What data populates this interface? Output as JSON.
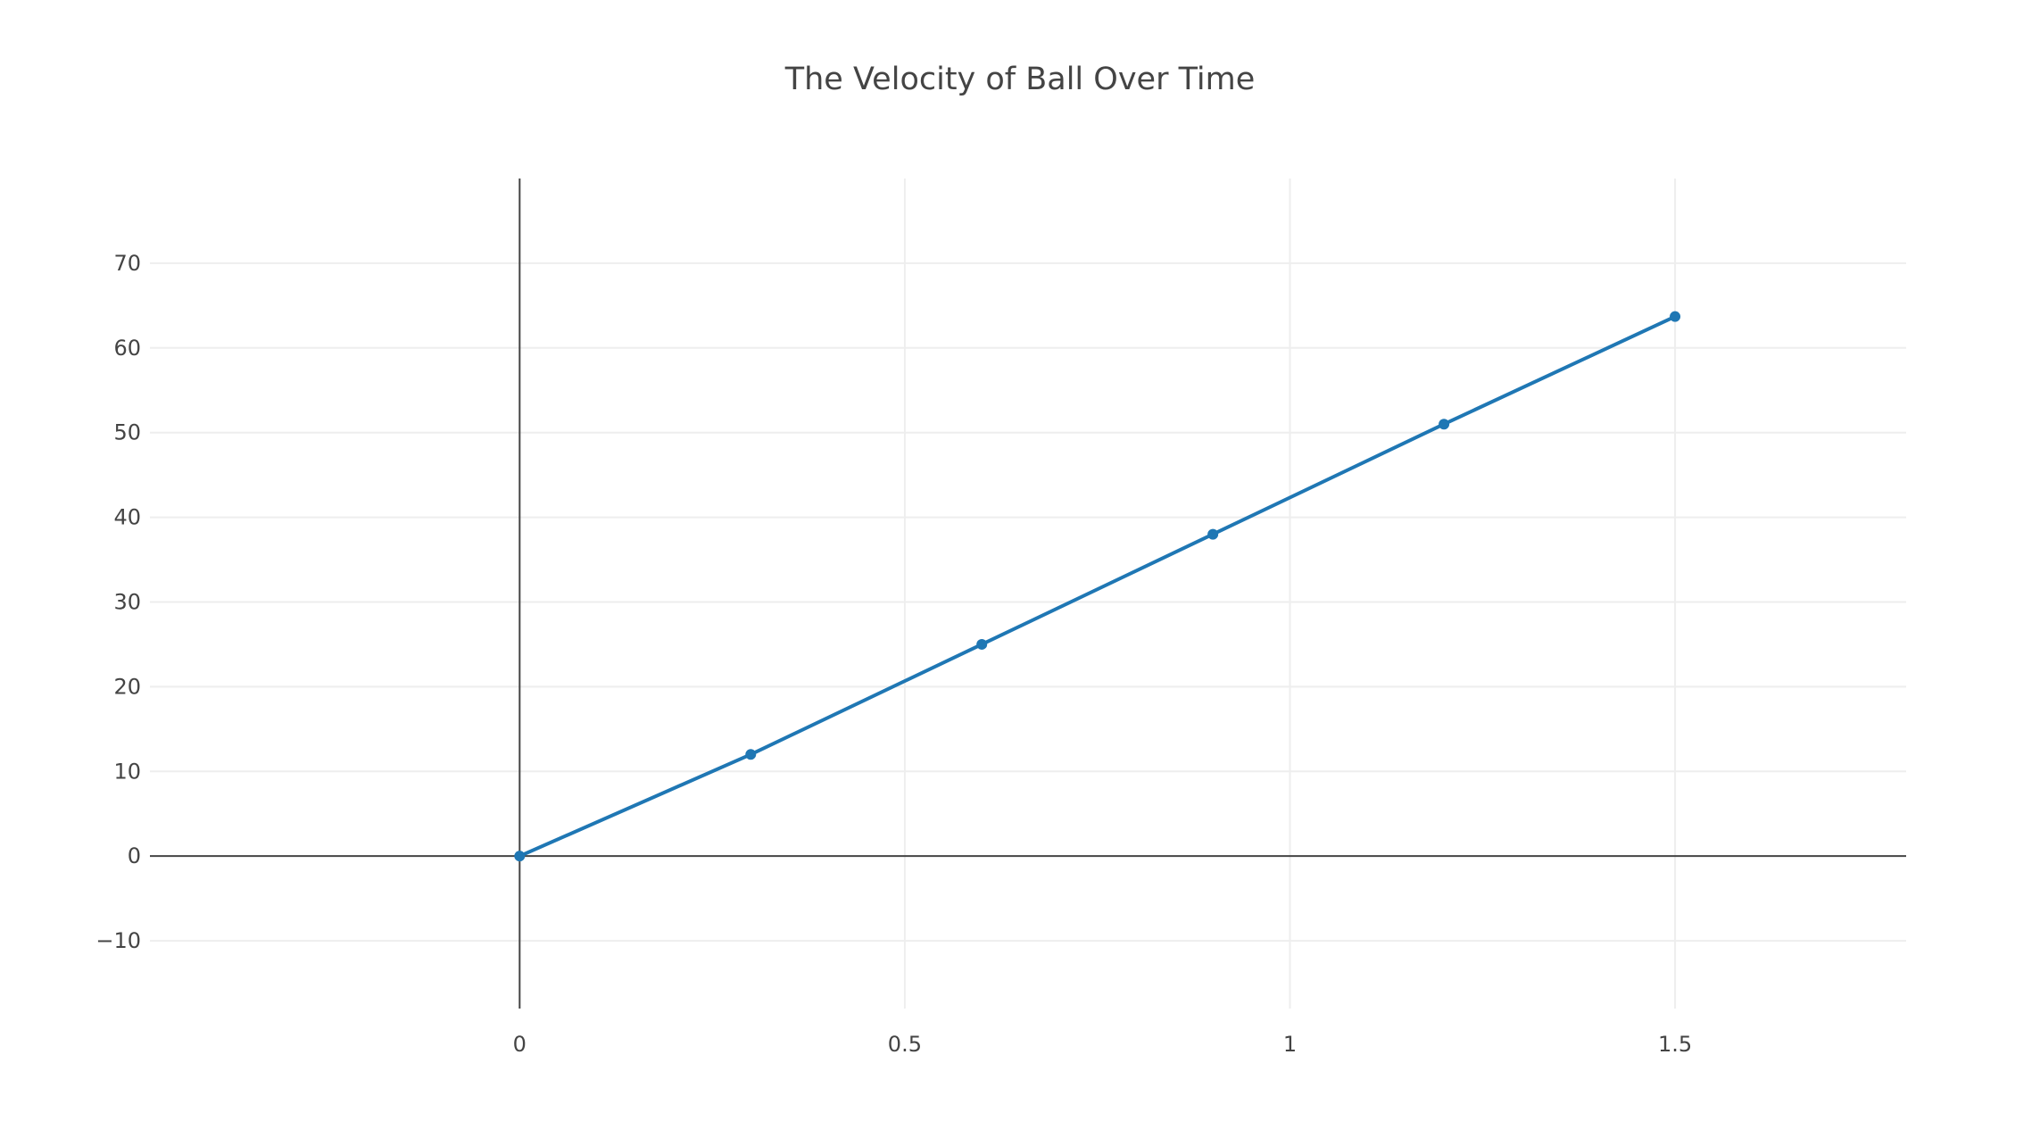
{
  "chart_data": {
    "type": "line",
    "title": "The Velocity of Ball Over Time",
    "xlabel": "",
    "ylabel": "",
    "x": [
      0,
      0.3,
      0.6,
      0.9,
      1.2,
      1.5
    ],
    "series": [
      {
        "values": [
          0,
          12,
          25,
          38,
          51,
          63.7
        ],
        "color": "#1f77b4",
        "mode": "lines+markers"
      }
    ],
    "xlim": [
      -0.48,
      1.8
    ],
    "ylim": [
      -18,
      80
    ],
    "xticks": [
      {
        "value": 0,
        "label": "0"
      },
      {
        "value": 0.5,
        "label": "0.5"
      },
      {
        "value": 1,
        "label": "1"
      },
      {
        "value": 1.5,
        "label": "1.5"
      }
    ],
    "yticks": [
      {
        "value": -10,
        "label": "−10"
      },
      {
        "value": 0,
        "label": "0"
      },
      {
        "value": 10,
        "label": "10"
      },
      {
        "value": 20,
        "label": "20"
      },
      {
        "value": 30,
        "label": "30"
      },
      {
        "value": 40,
        "label": "40"
      },
      {
        "value": 50,
        "label": "50"
      },
      {
        "value": 60,
        "label": "60"
      },
      {
        "value": 70,
        "label": "70"
      }
    ],
    "grid": true,
    "legend": "none"
  }
}
